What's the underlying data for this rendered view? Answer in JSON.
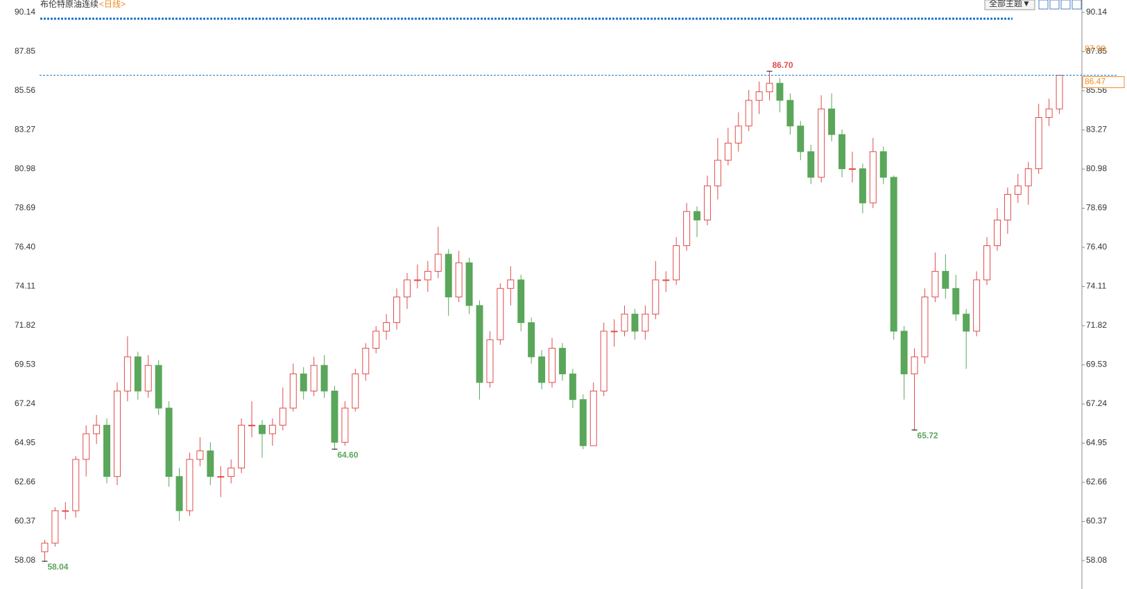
{
  "chart_data": {
    "type": "candlestick",
    "title": "布伦特原油连续",
    "subtitle": "<日线>",
    "ylim": [
      56.42,
      90.87
    ],
    "yticks": [
      90.14,
      87.85,
      85.56,
      83.27,
      80.98,
      78.69,
      {
        "value": 76.4,
        "label": "76.40"
      },
      74.11,
      71.82,
      69.53,
      67.24,
      64.95,
      62.66,
      60.37,
      58.08
    ],
    "grid": false,
    "up_color": "#e04a4a",
    "down_color": "#5aa65a",
    "values": [
      [
        58.6,
        59.3,
        58.04,
        59.1
      ],
      [
        59.1,
        61.2,
        58.9,
        61.0
      ],
      [
        61.0,
        61.5,
        60.5,
        61.0
      ],
      [
        61.0,
        64.2,
        60.6,
        64.0
      ],
      [
        64.0,
        66.0,
        63.0,
        65.5
      ],
      [
        65.5,
        66.6,
        64.9,
        66.0
      ],
      [
        66.0,
        66.4,
        62.6,
        63.0
      ],
      [
        63.0,
        68.5,
        62.5,
        68.0
      ],
      [
        68.0,
        71.2,
        67.4,
        70.0
      ],
      [
        70.0,
        70.3,
        67.5,
        68.0
      ],
      [
        68.0,
        70.1,
        67.6,
        69.5
      ],
      [
        69.5,
        69.8,
        66.6,
        67.0
      ],
      [
        67.0,
        67.4,
        62.4,
        63.0
      ],
      [
        63.0,
        63.5,
        60.4,
        61.0
      ],
      [
        61.0,
        64.4,
        60.7,
        64.0
      ],
      [
        64.0,
        65.3,
        63.6,
        64.5
      ],
      [
        64.5,
        65.0,
        62.5,
        63.0
      ],
      [
        63.0,
        63.6,
        61.8,
        63.0
      ],
      [
        63.0,
        64.0,
        62.6,
        63.5
      ],
      [
        63.5,
        66.4,
        63.2,
        66.0
      ],
      [
        66.0,
        67.4,
        65.3,
        66.0
      ],
      [
        66.0,
        66.3,
        64.1,
        65.5
      ],
      [
        65.5,
        66.4,
        64.8,
        66.0
      ],
      [
        66.0,
        68.2,
        65.7,
        67.0
      ],
      [
        67.0,
        69.6,
        66.8,
        69.0
      ],
      [
        69.0,
        69.4,
        67.5,
        68.0
      ],
      [
        68.0,
        70.0,
        67.7,
        69.5
      ],
      [
        69.5,
        70.1,
        67.6,
        68.0
      ],
      [
        68.0,
        68.3,
        64.6,
        65.0
      ],
      [
        65.0,
        67.4,
        64.8,
        67.0
      ],
      [
        67.0,
        69.3,
        66.8,
        69.0
      ],
      [
        69.0,
        70.8,
        68.6,
        70.5
      ],
      [
        70.5,
        71.8,
        70.2,
        71.5
      ],
      [
        71.5,
        72.5,
        71.0,
        72.0
      ],
      [
        72.0,
        74.0,
        71.6,
        73.5
      ],
      [
        73.5,
        74.9,
        72.8,
        74.5
      ],
      [
        74.5,
        75.4,
        74.0,
        74.5
      ],
      [
        74.5,
        75.6,
        73.8,
        75.0
      ],
      [
        75.0,
        77.6,
        74.6,
        76.0
      ],
      [
        76.0,
        76.3,
        72.4,
        73.5
      ],
      [
        73.5,
        76.2,
        73.2,
        75.5
      ],
      [
        75.5,
        75.8,
        72.5,
        73.0
      ],
      [
        73.0,
        73.3,
        67.5,
        68.5
      ],
      [
        68.5,
        71.5,
        68.2,
        71.0
      ],
      [
        71.0,
        74.3,
        70.7,
        74.0
      ],
      [
        74.0,
        75.3,
        73.0,
        74.5
      ],
      [
        74.5,
        74.8,
        71.5,
        72.0
      ],
      [
        72.0,
        72.3,
        69.6,
        70.0
      ],
      [
        70.0,
        70.4,
        68.1,
        68.5
      ],
      [
        68.5,
        71.1,
        68.2,
        70.5
      ],
      [
        70.5,
        70.8,
        68.6,
        69.0
      ],
      [
        69.0,
        69.3,
        67.0,
        67.5
      ],
      [
        67.5,
        67.8,
        64.6,
        64.8
      ],
      [
        64.8,
        68.5,
        64.8,
        68.0
      ],
      [
        68.0,
        72.0,
        67.7,
        71.5
      ],
      [
        71.5,
        72.2,
        70.6,
        71.5
      ],
      [
        71.5,
        73.0,
        71.2,
        72.5
      ],
      [
        72.5,
        72.8,
        71.0,
        71.5
      ],
      [
        71.5,
        73.0,
        71.0,
        72.5
      ],
      [
        72.5,
        75.6,
        72.2,
        74.5
      ],
      [
        74.5,
        75.0,
        73.8,
        74.5
      ],
      [
        74.5,
        77.0,
        74.2,
        76.5
      ],
      [
        76.5,
        79.0,
        76.2,
        78.5
      ],
      [
        78.5,
        78.8,
        77.0,
        78.0
      ],
      [
        78.0,
        80.6,
        77.7,
        80.0
      ],
      [
        80.0,
        82.8,
        79.2,
        81.5
      ],
      [
        81.5,
        83.4,
        81.2,
        82.5
      ],
      [
        82.5,
        84.3,
        82.0,
        83.5
      ],
      [
        83.5,
        85.6,
        83.2,
        85.0
      ],
      [
        85.0,
        86.1,
        84.2,
        85.5
      ],
      [
        85.5,
        86.7,
        85.0,
        86.0
      ],
      [
        86.0,
        86.3,
        84.3,
        85.0
      ],
      [
        85.0,
        85.4,
        83.0,
        83.5
      ],
      [
        83.5,
        83.8,
        81.5,
        82.0
      ],
      [
        82.0,
        82.4,
        80.1,
        80.5
      ],
      [
        80.5,
        85.3,
        80.2,
        84.5
      ],
      [
        84.5,
        85.4,
        82.6,
        83.0
      ],
      [
        83.0,
        83.3,
        80.5,
        81.0
      ],
      [
        81.0,
        82.0,
        80.2,
        81.0
      ],
      [
        81.0,
        81.3,
        78.4,
        79.0
      ],
      [
        79.0,
        82.8,
        78.7,
        82.0
      ],
      [
        82.0,
        82.3,
        80.1,
        80.5
      ],
      [
        80.5,
        80.6,
        71.0,
        71.5
      ],
      [
        71.5,
        71.8,
        67.5,
        69.0
      ],
      [
        69.0,
        70.5,
        65.72,
        70.0
      ],
      [
        70.0,
        74.0,
        69.6,
        73.5
      ],
      [
        73.5,
        76.1,
        73.2,
        75.0
      ],
      [
        75.0,
        76.0,
        73.4,
        74.0
      ],
      [
        74.0,
        74.8,
        72.1,
        72.5
      ],
      [
        72.5,
        72.8,
        69.3,
        71.5
      ],
      [
        71.5,
        75.0,
        71.2,
        74.5
      ],
      [
        74.5,
        77.0,
        74.2,
        76.5
      ],
      [
        76.5,
        78.7,
        76.2,
        78.0
      ],
      [
        78.0,
        79.9,
        77.2,
        79.5
      ],
      [
        79.5,
        80.7,
        79.0,
        80.0
      ],
      [
        80.0,
        81.4,
        78.9,
        81.0
      ],
      [
        81.0,
        84.8,
        80.7,
        84.0
      ],
      [
        84.0,
        85.1,
        83.5,
        84.5
      ],
      [
        84.5,
        86.47,
        84.2,
        86.47
      ]
    ],
    "extremes": [
      {
        "value": 58.04,
        "label": "58.04"
      },
      {
        "value": 86.7,
        "label": "86.70"
      },
      {
        "value": 64.6,
        "label": "64.60"
      },
      {
        "value": 65.72,
        "label": "65.72"
      }
    ],
    "last_price": {
      "value": 86.47,
      "label": "86.47"
    },
    "upper_price": {
      "value": 87.99,
      "label": "87.99"
    }
  },
  "toolbar": {
    "theme": "全部主题▼"
  }
}
